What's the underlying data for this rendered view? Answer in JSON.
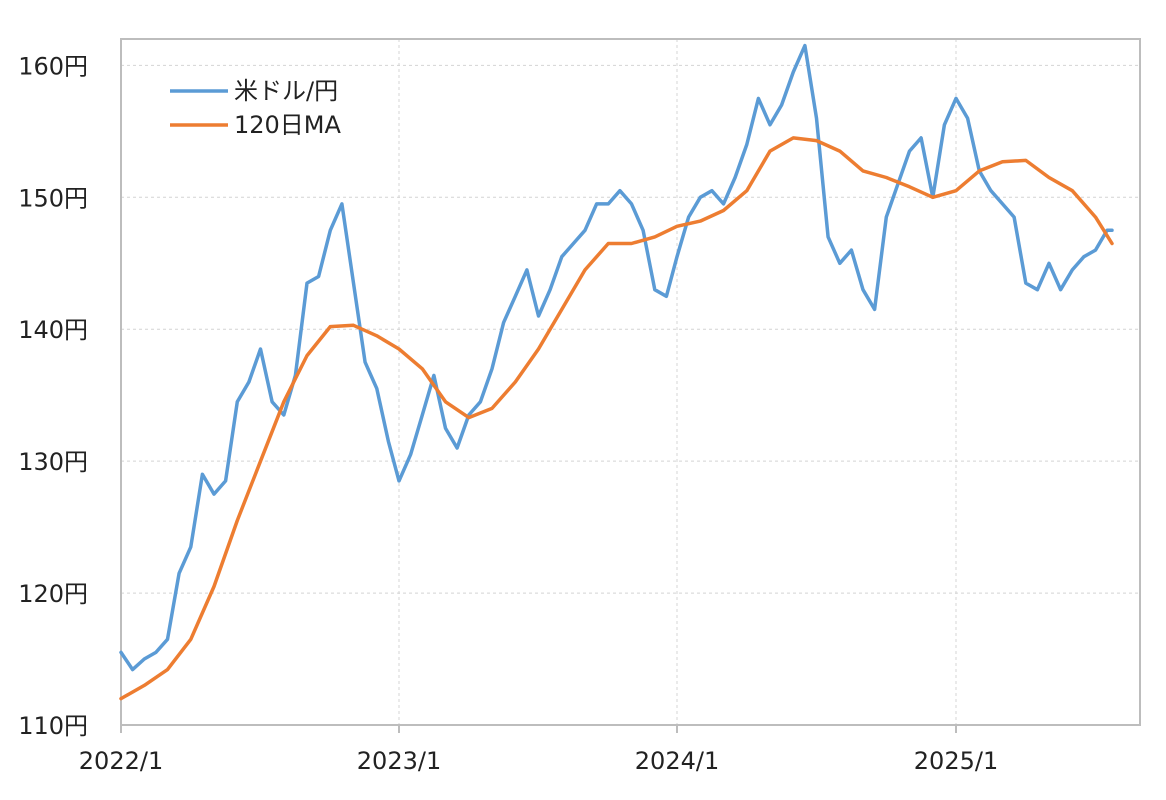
{
  "chart_data": {
    "type": "line",
    "title": "",
    "xlabel": "",
    "ylabel": "",
    "ylim": [
      110,
      162
    ],
    "y_ticks": [
      110,
      120,
      130,
      140,
      150,
      160
    ],
    "y_tick_format": "{v}円",
    "x_ticks": [
      "2022/1",
      "2023/1",
      "2024/1",
      "2025/1"
    ],
    "xlim": [
      "2022/01",
      "2025/08"
    ],
    "grid": true,
    "legend": "top-left",
    "colors": {
      "usd_jpy": "#5b9bd5",
      "ma120": "#ed7d31"
    },
    "series": [
      {
        "name": "米ドル/円",
        "x": [
          "2022/01",
          "2022/01",
          "2022/02",
          "2022/02",
          "2022/03",
          "2022/03",
          "2022/04",
          "2022/04",
          "2022/05",
          "2022/05",
          "2022/06",
          "2022/06",
          "2022/07",
          "2022/07",
          "2022/08",
          "2022/08",
          "2022/09",
          "2022/09",
          "2022/10",
          "2022/10",
          "2022/11",
          "2022/11",
          "2022/12",
          "2022/12",
          "2023/01",
          "2023/01",
          "2023/02",
          "2023/02",
          "2023/03",
          "2023/03",
          "2023/04",
          "2023/04",
          "2023/05",
          "2023/05",
          "2023/06",
          "2023/06",
          "2023/07",
          "2023/07",
          "2023/08",
          "2023/08",
          "2023/09",
          "2023/09",
          "2023/10",
          "2023/10",
          "2023/11",
          "2023/11",
          "2023/12",
          "2023/12",
          "2024/01",
          "2024/01",
          "2024/02",
          "2024/02",
          "2024/03",
          "2024/03",
          "2024/04",
          "2024/04",
          "2024/05",
          "2024/05",
          "2024/06",
          "2024/06",
          "2024/07",
          "2024/07",
          "2024/08",
          "2024/08",
          "2024/09",
          "2024/09",
          "2024/10",
          "2024/10",
          "2024/11",
          "2024/11",
          "2024/12",
          "2024/12",
          "2025/01",
          "2025/01",
          "2025/02",
          "2025/02",
          "2025/03",
          "2025/03",
          "2025/04",
          "2025/04",
          "2025/05",
          "2025/05",
          "2025/06",
          "2025/06",
          "2025/07",
          "2025/07",
          "2025/08"
        ],
        "values": [
          115.5,
          114.2,
          115.0,
          115.5,
          116.5,
          121.5,
          123.5,
          129.0,
          127.5,
          128.5,
          134.5,
          136.0,
          138.5,
          134.5,
          133.5,
          136.5,
          143.5,
          144.0,
          147.5,
          149.5,
          143.5,
          137.5,
          135.5,
          131.5,
          128.5,
          130.5,
          133.5,
          136.5,
          132.5,
          131.0,
          133.5,
          134.5,
          137.0,
          140.5,
          142.5,
          144.5,
          141.0,
          143.0,
          145.5,
          146.5,
          147.5,
          149.5,
          149.5,
          150.5,
          149.5,
          147.5,
          143.0,
          142.5,
          145.5,
          148.5,
          150.0,
          150.5,
          149.5,
          151.5,
          154.0,
          157.5,
          155.5,
          157.0,
          159.5,
          161.5,
          156.0,
          147.0,
          145.0,
          146.0,
          143.0,
          141.5,
          148.5,
          151.0,
          153.5,
          154.5,
          150.0,
          155.5,
          157.5,
          156.0,
          152.0,
          150.5,
          149.5,
          148.5,
          143.5,
          143.0,
          145.0,
          143.0,
          144.5,
          145.5,
          146.0,
          147.5,
          147.5
        ]
      },
      {
        "name": "120日MA",
        "x": [
          "2022/01",
          "2022/02",
          "2022/03",
          "2022/04",
          "2022/05",
          "2022/06",
          "2022/07",
          "2022/08",
          "2022/09",
          "2022/10",
          "2022/11",
          "2022/12",
          "2023/01",
          "2023/02",
          "2023/03",
          "2023/04",
          "2023/05",
          "2023/06",
          "2023/07",
          "2023/08",
          "2023/09",
          "2023/10",
          "2023/11",
          "2023/12",
          "2024/01",
          "2024/02",
          "2024/03",
          "2024/04",
          "2024/05",
          "2024/06",
          "2024/07",
          "2024/08",
          "2024/09",
          "2024/10",
          "2024/11",
          "2024/12",
          "2025/01",
          "2025/02",
          "2025/03",
          "2025/04",
          "2025/05",
          "2025/06",
          "2025/07",
          "2025/08"
        ],
        "values": [
          112.0,
          113.0,
          114.2,
          116.5,
          120.5,
          125.5,
          130.0,
          134.5,
          138.0,
          140.2,
          140.3,
          139.5,
          138.5,
          137.0,
          134.5,
          133.3,
          134.0,
          136.0,
          138.5,
          141.5,
          144.5,
          146.5,
          146.5,
          147.0,
          147.8,
          148.2,
          149.0,
          150.5,
          153.5,
          154.5,
          154.3,
          153.5,
          152.0,
          151.5,
          150.8,
          150.0,
          150.5,
          152.0,
          152.7,
          152.8,
          151.5,
          150.5,
          148.5,
          146.5
        ]
      }
    ]
  }
}
